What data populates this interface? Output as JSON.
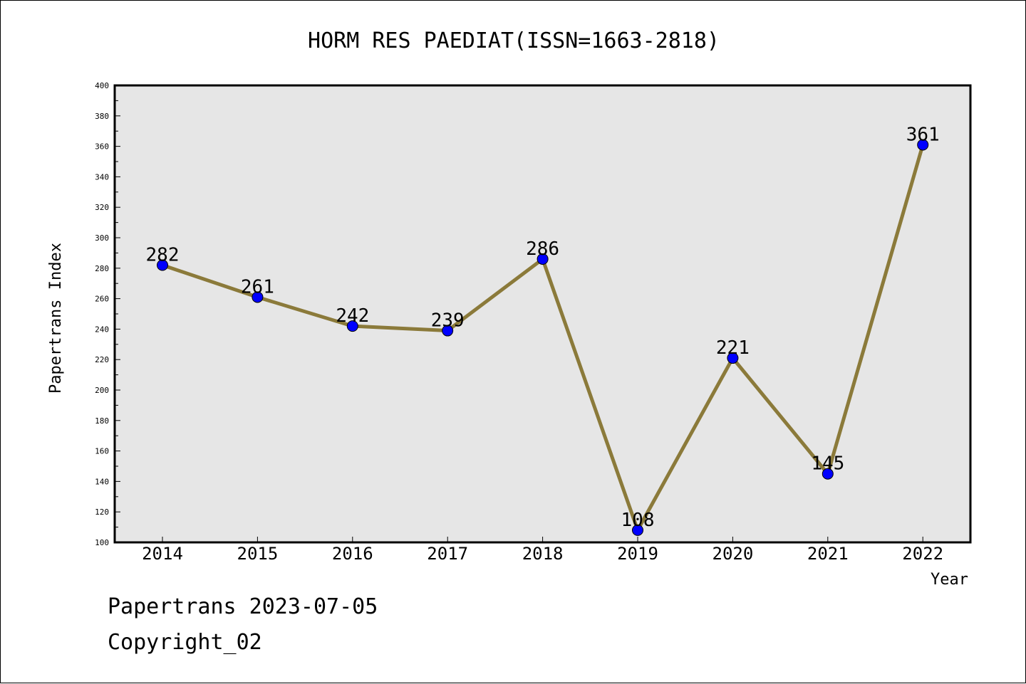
{
  "chart_data": {
    "type": "line",
    "title": "HORM RES PAEDIAT(ISSN=1663-2818)",
    "xlabel": "Year",
    "ylabel": "Papertrans Index",
    "categories": [
      "2014",
      "2015",
      "2016",
      "2017",
      "2018",
      "2019",
      "2020",
      "2021",
      "2022"
    ],
    "values": [
      282,
      261,
      242,
      239,
      286,
      108,
      221,
      145,
      361
    ],
    "ylim": [
      100,
      400
    ],
    "yticks": [
      100,
      120,
      140,
      160,
      180,
      200,
      220,
      240,
      260,
      280,
      300,
      320,
      340,
      360,
      380,
      400
    ],
    "grid": false,
    "colors": {
      "line": "#8b7a3a",
      "marker": "#0000ff",
      "plot_bg": "#e6e6e6"
    }
  },
  "footer": {
    "line1": "Papertrans 2023-07-05",
    "line2": "Copyright_02"
  }
}
